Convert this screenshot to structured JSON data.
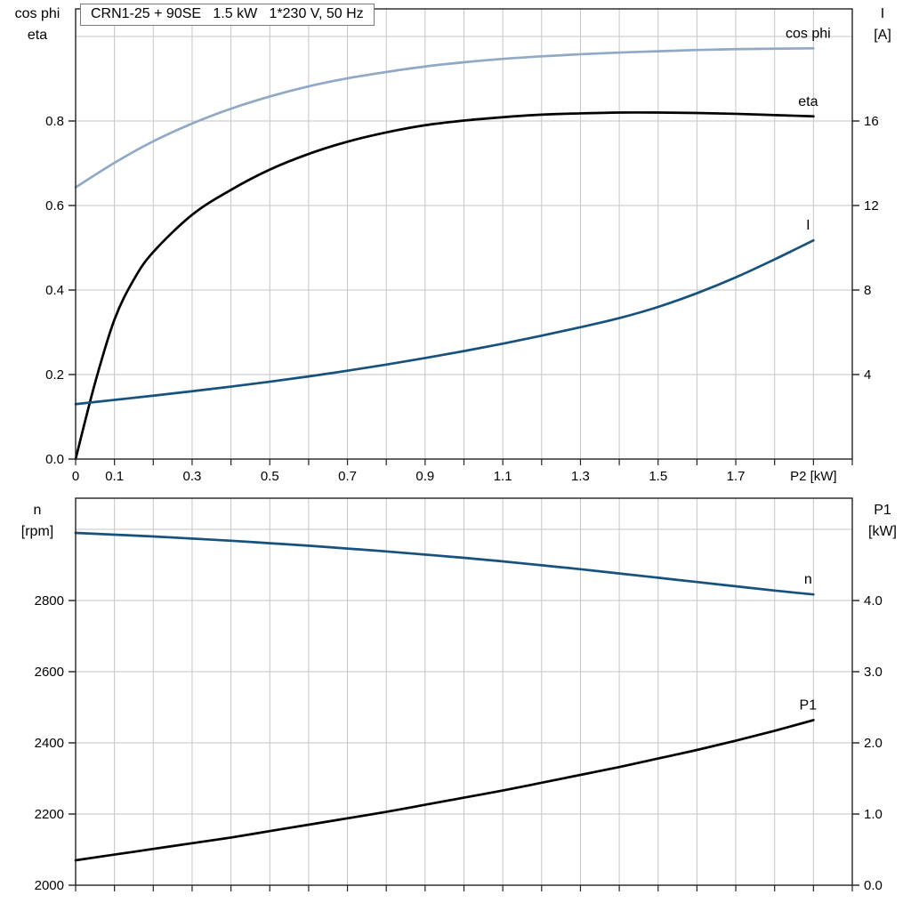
{
  "title": "CRN1-25 + 90SE   1.5 kW   1*230 V, 50 Hz",
  "colors": {
    "cos_phi": "#8fa9c6",
    "eta": "#000000",
    "current": "#16527e",
    "speed": "#16527e",
    "power": "#000000",
    "grid": "#c6c6c6",
    "axis": "#222222"
  },
  "chart_data": [
    {
      "type": "line",
      "x_axis": {
        "min": 0,
        "max": 2.0,
        "grid_step": 0.1,
        "tick_values": [
          0,
          0.1,
          0.3,
          0.5,
          0.7,
          0.9,
          1.1,
          1.3,
          1.5,
          1.7
        ],
        "tick_labels": [
          "0",
          "0.1",
          "0.3",
          "0.5",
          "0.7",
          "0.9",
          "1.1",
          "1.3",
          "1.5",
          "1.7"
        ],
        "unit_label": "P2 [kW]",
        "unit_label_value": 1.9
      },
      "left_axis": {
        "title_lines": [
          "cos phi",
          "eta"
        ],
        "min": 0,
        "max": 1.06,
        "tick_values": [
          0,
          0.2,
          0.4,
          0.6,
          0.8
        ],
        "tick_labels": [
          "0.0",
          "0.2",
          "0.4",
          "0.6",
          "0.8"
        ],
        "grid_values": [
          0.2,
          0.4,
          0.6,
          0.8,
          1.0
        ]
      },
      "right_axis": {
        "title_lines": [
          "I",
          "[A]"
        ],
        "min": 0,
        "max": 21.3,
        "tick_values": [
          4,
          8,
          12,
          16
        ],
        "tick_labels": [
          "4",
          "8",
          "12",
          "16"
        ]
      },
      "series": [
        {
          "name": "cos phi",
          "label": "cos phi",
          "axis": "left",
          "color_key": "cos_phi",
          "x": [
            0,
            0.1,
            0.2,
            0.3,
            0.4,
            0.5,
            0.6,
            0.7,
            0.8,
            0.9,
            1.0,
            1.1,
            1.2,
            1.3,
            1.4,
            1.5,
            1.6,
            1.7,
            1.8,
            1.9
          ],
          "y": [
            0.643,
            0.701,
            0.752,
            0.794,
            0.829,
            0.858,
            0.882,
            0.901,
            0.916,
            0.929,
            0.939,
            0.947,
            0.953,
            0.958,
            0.962,
            0.965,
            0.968,
            0.97,
            0.971,
            0.972
          ]
        },
        {
          "name": "eta",
          "label": "eta",
          "axis": "left",
          "color_key": "eta",
          "x": [
            0,
            0.05,
            0.1,
            0.15,
            0.2,
            0.3,
            0.4,
            0.5,
            0.6,
            0.7,
            0.8,
            0.9,
            1.0,
            1.1,
            1.2,
            1.3,
            1.4,
            1.5,
            1.6,
            1.7,
            1.8,
            1.9
          ],
          "y": [
            0,
            0.18,
            0.33,
            0.425,
            0.49,
            0.578,
            0.637,
            0.685,
            0.722,
            0.751,
            0.773,
            0.79,
            0.801,
            0.809,
            0.815,
            0.818,
            0.82,
            0.82,
            0.819,
            0.817,
            0.814,
            0.811
          ]
        },
        {
          "name": "I",
          "label": "I",
          "axis": "right",
          "color_key": "current",
          "x": [
            0,
            0.1,
            0.2,
            0.3,
            0.4,
            0.5,
            0.6,
            0.7,
            0.8,
            0.9,
            1.0,
            1.1,
            1.2,
            1.3,
            1.4,
            1.5,
            1.6,
            1.7,
            1.8,
            1.9
          ],
          "y": [
            2.6,
            2.8,
            3.0,
            3.21,
            3.43,
            3.66,
            3.91,
            4.18,
            4.47,
            4.78,
            5.11,
            5.46,
            5.84,
            6.24,
            6.67,
            7.2,
            7.85,
            8.6,
            9.45,
            10.35
          ]
        }
      ]
    },
    {
      "type": "line",
      "x_axis": {
        "min": 0,
        "max": 2.0,
        "grid_step": 0.1,
        "tick_values": [],
        "tick_labels": []
      },
      "left_axis": {
        "title_lines": [
          "n",
          "[rpm]"
        ],
        "min": 2000,
        "max": 3090,
        "tick_values": [
          2000,
          2200,
          2400,
          2600,
          2800
        ],
        "tick_labels": [
          "2000",
          "2200",
          "2400",
          "2600",
          "2800"
        ],
        "grid_values": [
          2200,
          2400,
          2600,
          2800,
          3000
        ]
      },
      "right_axis": {
        "title_lines": [
          "P1",
          "[kW]"
        ],
        "min": 0,
        "max": 5.4,
        "tick_values": [
          0,
          1,
          2,
          3,
          4
        ],
        "tick_labels": [
          "0.0",
          "1.0",
          "2.0",
          "3.0",
          "4.0"
        ]
      },
      "series": [
        {
          "name": "n",
          "label": "n",
          "axis": "left",
          "color_key": "speed",
          "x": [
            0,
            0.1,
            0.2,
            0.3,
            0.4,
            0.5,
            0.6,
            0.7,
            0.8,
            0.9,
            1.0,
            1.1,
            1.2,
            1.3,
            1.4,
            1.5,
            1.6,
            1.7,
            1.8,
            1.9
          ],
          "y": [
            2990,
            2985,
            2980,
            2974,
            2968,
            2961,
            2954,
            2946,
            2938,
            2929,
            2920,
            2910,
            2899,
            2888,
            2876,
            2864,
            2852,
            2840,
            2828,
            2817
          ]
        },
        {
          "name": "P1",
          "label": "P1",
          "axis": "right",
          "color_key": "power",
          "x": [
            0,
            0.1,
            0.2,
            0.3,
            0.4,
            0.5,
            0.6,
            0.7,
            0.8,
            0.9,
            1.0,
            1.1,
            1.2,
            1.3,
            1.4,
            1.5,
            1.6,
            1.7,
            1.8,
            1.9
          ],
          "y": [
            0.35,
            0.43,
            0.51,
            0.59,
            0.67,
            0.76,
            0.85,
            0.94,
            1.03,
            1.13,
            1.23,
            1.33,
            1.44,
            1.55,
            1.66,
            1.78,
            1.9,
            2.03,
            2.17,
            2.32
          ]
        }
      ]
    }
  ]
}
